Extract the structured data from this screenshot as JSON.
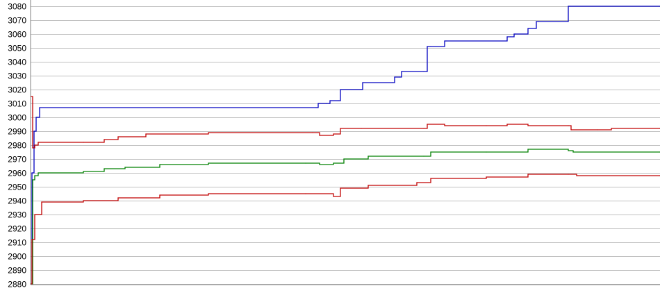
{
  "chart_data": {
    "type": "line",
    "title": "",
    "xlabel": "",
    "ylabel": "",
    "ylim": [
      2880,
      3080
    ],
    "y_ticks": [
      2880,
      2890,
      2900,
      2910,
      2920,
      2930,
      2940,
      2950,
      2960,
      2970,
      2980,
      2990,
      3000,
      3010,
      3020,
      3030,
      3040,
      3050,
      3060,
      3070,
      3080
    ],
    "xlim": [
      0,
      906
    ],
    "grid": "horizontal",
    "legend": "none",
    "x_tick_labels_note_visible": false,
    "series": [
      {
        "color": "#0000c0",
        "x": [
          0,
          2,
          5,
          8,
          13,
          411,
          414,
          426,
          431,
          443,
          446,
          476,
          478,
          521,
          524,
          531,
          534,
          566,
          571,
          576,
          596,
          598,
          686,
          691,
          696,
          698,
          716,
          718,
          728,
          731,
          774,
          776,
          906
        ],
        "y": [
          2880,
          2960,
          2990,
          3000,
          3007,
          3007,
          3010,
          3010,
          3012,
          3012,
          3020,
          3020,
          3025,
          3025,
          3029,
          3029,
          3033,
          3033,
          3051,
          3051,
          3055,
          3055,
          3058,
          3058,
          3060,
          3060,
          3064,
          3064,
          3069,
          3069,
          3080,
          3080,
          3080
        ]
      },
      {
        "color": "#c00000",
        "x": [
          0,
          3,
          6,
          11,
          76,
          106,
          126,
          166,
          256,
          406,
          416,
          436,
          446,
          476,
          566,
          571,
          596,
          656,
          686,
          716,
          774,
          778,
          816,
          836,
          906
        ],
        "y": [
          3015,
          2978,
          2980,
          2982,
          2982,
          2984,
          2986,
          2988,
          2989,
          2989,
          2987,
          2988,
          2992,
          2992,
          2992,
          2995,
          2994,
          2994,
          2995,
          2994,
          2994,
          2991,
          2991,
          2992,
          2992
        ]
      },
      {
        "color": "#008000",
        "x": [
          0,
          3,
          6,
          11,
          76,
          106,
          136,
          186,
          256,
          396,
          416,
          436,
          451,
          486,
          566,
          576,
          656,
          716,
          774,
          781,
          906
        ],
        "y": [
          2880,
          2955,
          2958,
          2960,
          2961,
          2963,
          2964,
          2966,
          2967,
          2967,
          2966,
          2967,
          2970,
          2972,
          2972,
          2975,
          2975,
          2977,
          2976,
          2975,
          2975
        ]
      },
      {
        "color": "#c00000",
        "x": [
          0,
          2,
          6,
          16,
          76,
          126,
          186,
          256,
          396,
          436,
          446,
          486,
          556,
          576,
          656,
          716,
          774,
          786,
          906
        ],
        "y": [
          2880,
          2912,
          2930,
          2939,
          2940,
          2942,
          2944,
          2945,
          2945,
          2943,
          2949,
          2951,
          2953,
          2956,
          2957,
          2959,
          2959,
          2958,
          2958
        ]
      }
    ]
  }
}
